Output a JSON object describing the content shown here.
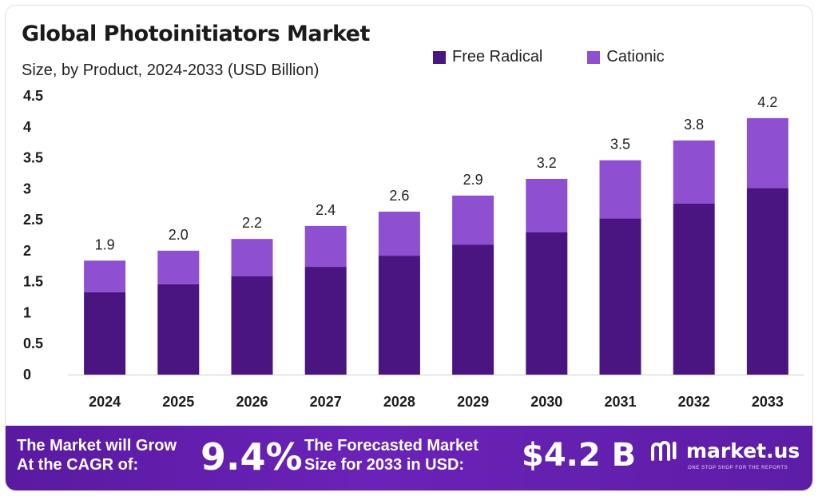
{
  "colors": {
    "free_radical": "#4a1580",
    "cationic": "#8e4fd0",
    "footer": "#5e1ea6"
  },
  "header": {
    "title": "Global Photoinitiators Market",
    "subtitle": "Size, by Product, 2024-2033 (USD Billion)"
  },
  "chart_data": {
    "type": "bar",
    "stacked": true,
    "categories": [
      "2024",
      "2025",
      "2026",
      "2027",
      "2028",
      "2029",
      "2030",
      "2031",
      "2032",
      "2033"
    ],
    "series": [
      {
        "name": "Free Radical",
        "values": [
          1.33,
          1.46,
          1.59,
          1.74,
          1.92,
          2.1,
          2.3,
          2.52,
          2.76,
          3.01
        ]
      },
      {
        "name": "Cationic",
        "values": [
          0.51,
          0.54,
          0.6,
          0.66,
          0.71,
          0.79,
          0.86,
          0.94,
          1.02,
          1.13
        ]
      }
    ],
    "totals_labels": [
      "1.9",
      "2.0",
      "2.2",
      "2.4",
      "2.6",
      "2.9",
      "3.2",
      "3.5",
      "3.8",
      "4.2"
    ],
    "yticks": [
      "0",
      "0.5",
      "1",
      "1.5",
      "2",
      "2.5",
      "3",
      "3.5",
      "4",
      "4.5"
    ],
    "ylim": [
      0,
      4.5
    ],
    "grid": false,
    "legend_position": "top-right"
  },
  "footer": {
    "cagr_text_line1": "The Market will Grow",
    "cagr_text_line2": "At the CAGR of:",
    "cagr_value": "9.4%",
    "forecast_text_line1": "The Forecasted Market",
    "forecast_text_line2": "Size for 2033 in USD:",
    "forecast_value": "$4.2 B",
    "brand_name": "market.us",
    "brand_tagline": "ONE STOP SHOP FOR THE REPORTS",
    "brand_icon": "market-us-logo-icon"
  }
}
